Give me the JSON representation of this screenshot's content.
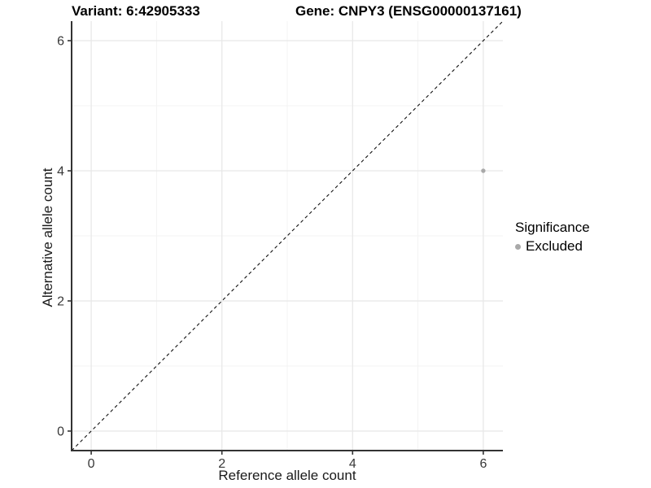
{
  "titles": {
    "variant": "Variant: 6:42905333",
    "gene": "Gene: CNPY3 (ENSG00000137161)"
  },
  "chart_data": {
    "type": "scatter",
    "xlabel": "Reference allele count",
    "ylabel": "Alternative allele count",
    "xlim": [
      -0.3,
      6.3
    ],
    "ylim": [
      -0.3,
      6.3
    ],
    "x_ticks": [
      0,
      2,
      4,
      6
    ],
    "y_ticks": [
      0,
      2,
      4,
      6
    ],
    "x_minor_ticks": [
      1,
      3,
      5
    ],
    "y_minor_ticks": [
      1,
      3,
      5
    ],
    "grid": "major and minor, light gray on white",
    "identity_line": {
      "style": "dashed",
      "slope": 1,
      "intercept": 0
    },
    "series": [
      {
        "name": "Excluded",
        "color": "#a9a9a9",
        "point_radius": 2.7,
        "points": [
          {
            "x": 6,
            "y": 4
          }
        ]
      }
    ],
    "legend": {
      "title": "Significance",
      "position": "right",
      "items": [
        {
          "label": "Excluded",
          "color": "#a9a9a9"
        }
      ]
    }
  },
  "colors": {
    "background": "#ffffff",
    "axis": "#333333",
    "tick_text": "#383838",
    "grid_major": "#e8e8e8",
    "grid_minor": "#f3f3f3",
    "identity_line": "#111111"
  }
}
